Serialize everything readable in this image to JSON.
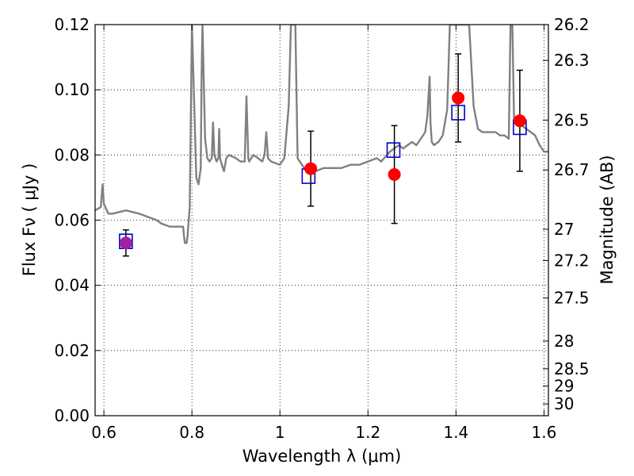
{
  "chart_data": {
    "type": "scatter",
    "xlabel": "Wavelength  λ (μm)",
    "ylabel": "Flux  Fν  ( μJy )",
    "ylabel_right": "Magnitude (AB)",
    "xlim": [
      0.58,
      1.61
    ],
    "ylim": [
      0.0,
      0.12
    ],
    "grid": true,
    "x_ticks": [
      0.6,
      0.8,
      1.0,
      1.2,
      1.4,
      1.6
    ],
    "x_tick_labels": [
      "0.6",
      "0.8",
      "1",
      "1.2",
      "1.4",
      "1.6"
    ],
    "y_ticks": [
      0.0,
      0.02,
      0.04,
      0.06,
      0.08,
      0.1,
      0.12
    ],
    "y_tick_labels": [
      "0.00",
      "0.02",
      "0.04",
      "0.06",
      "0.08",
      "0.10",
      "0.12"
    ],
    "right_ticks": [
      {
        "label": "26.2",
        "flux": 0.12
      },
      {
        "label": "26.3",
        "flux": 0.109
      },
      {
        "label": "26.5",
        "flux": 0.0907
      },
      {
        "label": "26.7",
        "flux": 0.0754
      },
      {
        "label": "27",
        "flux": 0.0572
      },
      {
        "label": "27.2",
        "flux": 0.0476
      },
      {
        "label": "27.5",
        "flux": 0.0361
      },
      {
        "label": "28",
        "flux": 0.0229
      },
      {
        "label": "28.5",
        "flux": 0.0144
      },
      {
        "label": "29",
        "flux": 0.0091
      },
      {
        "label": "30",
        "flux": 0.0036
      }
    ],
    "series": [
      {
        "style": "model-spectrum",
        "color": "#808080",
        "x": [
          0.58,
          0.593,
          0.597,
          0.6,
          0.61,
          0.62,
          0.65,
          0.68,
          0.7,
          0.72,
          0.73,
          0.75,
          0.77,
          0.78,
          0.782,
          0.784,
          0.788,
          0.79,
          0.795,
          0.8,
          0.8,
          0.81,
          0.815,
          0.82,
          0.822,
          0.824,
          0.83,
          0.835,
          0.84,
          0.845,
          0.848,
          0.851,
          0.856,
          0.86,
          0.862,
          0.864,
          0.868,
          0.873,
          0.878,
          0.884,
          0.9,
          0.91,
          0.92,
          0.924,
          0.928,
          0.93,
          0.935,
          0.94,
          0.95,
          0.96,
          0.965,
          0.969,
          0.973,
          0.98,
          1.0,
          1.01,
          1.02,
          1.025,
          1.035,
          1.04,
          1.055,
          1.06,
          1.08,
          1.1,
          1.12,
          1.14,
          1.16,
          1.18,
          1.2,
          1.22,
          1.23,
          1.25,
          1.27,
          1.28,
          1.29,
          1.3,
          1.31,
          1.32,
          1.33,
          1.335,
          1.34,
          1.342,
          1.345,
          1.35,
          1.36,
          1.37,
          1.38,
          1.386,
          1.388,
          1.427,
          1.43,
          1.44,
          1.45,
          1.46,
          1.47,
          1.48,
          1.49,
          1.5,
          1.51,
          1.52,
          1.524,
          1.528,
          1.532,
          1.54,
          1.55,
          1.56,
          1.57,
          1.58,
          1.59,
          1.6,
          1.61
        ],
        "values": [
          0.063,
          0.064,
          0.071,
          0.065,
          0.062,
          0.062,
          0.063,
          0.062,
          0.061,
          0.06,
          0.059,
          0.058,
          0.058,
          0.058,
          0.055,
          0.053,
          0.053,
          0.055,
          0.064,
          0.12,
          0.12,
          0.073,
          0.071,
          0.076,
          0.105,
          0.12,
          0.085,
          0.079,
          0.078,
          0.079,
          0.09,
          0.08,
          0.078,
          0.079,
          0.088,
          0.079,
          0.077,
          0.075,
          0.079,
          0.08,
          0.079,
          0.078,
          0.078,
          0.098,
          0.079,
          0.078,
          0.079,
          0.08,
          0.079,
          0.078,
          0.08,
          0.087,
          0.079,
          0.078,
          0.077,
          0.079,
          0.095,
          0.12,
          0.12,
          0.079,
          0.076,
          0.075,
          0.075,
          0.076,
          0.076,
          0.076,
          0.077,
          0.077,
          0.078,
          0.079,
          0.078,
          0.081,
          0.083,
          0.082,
          0.083,
          0.084,
          0.083,
          0.085,
          0.087,
          0.092,
          0.104,
          0.09,
          0.084,
          0.083,
          0.084,
          0.086,
          0.094,
          0.12,
          0.12,
          0.12,
          0.12,
          0.095,
          0.088,
          0.087,
          0.087,
          0.087,
          0.087,
          0.086,
          0.086,
          0.085,
          0.12,
          0.12,
          0.09,
          0.091,
          0.089,
          0.088,
          0.087,
          0.086,
          0.083,
          0.081,
          0.081
        ]
      },
      {
        "style": "open-squares",
        "color": "#0000cc",
        "x": [
          0.65,
          1.065,
          1.258,
          1.405,
          1.545
        ],
        "values": [
          0.0535,
          0.0735,
          0.0815,
          0.093,
          0.0885
        ]
      },
      {
        "style": "filled-circles",
        "color": "#ff0000",
        "x": [
          1.07,
          1.26,
          1.405,
          1.545
        ],
        "values": [
          0.0758,
          0.074,
          0.0975,
          0.0905
        ],
        "err_low": [
          0.0115,
          0.015,
          0.0135,
          0.0155
        ],
        "err_high": [
          0.0115,
          0.015,
          0.0135,
          0.0155
        ]
      },
      {
        "style": "filled-circles",
        "color": "#a020a0",
        "x": [
          0.65
        ],
        "values": [
          0.053
        ],
        "err_low": [
          0.004
        ],
        "err_high": [
          0.004
        ]
      }
    ]
  }
}
